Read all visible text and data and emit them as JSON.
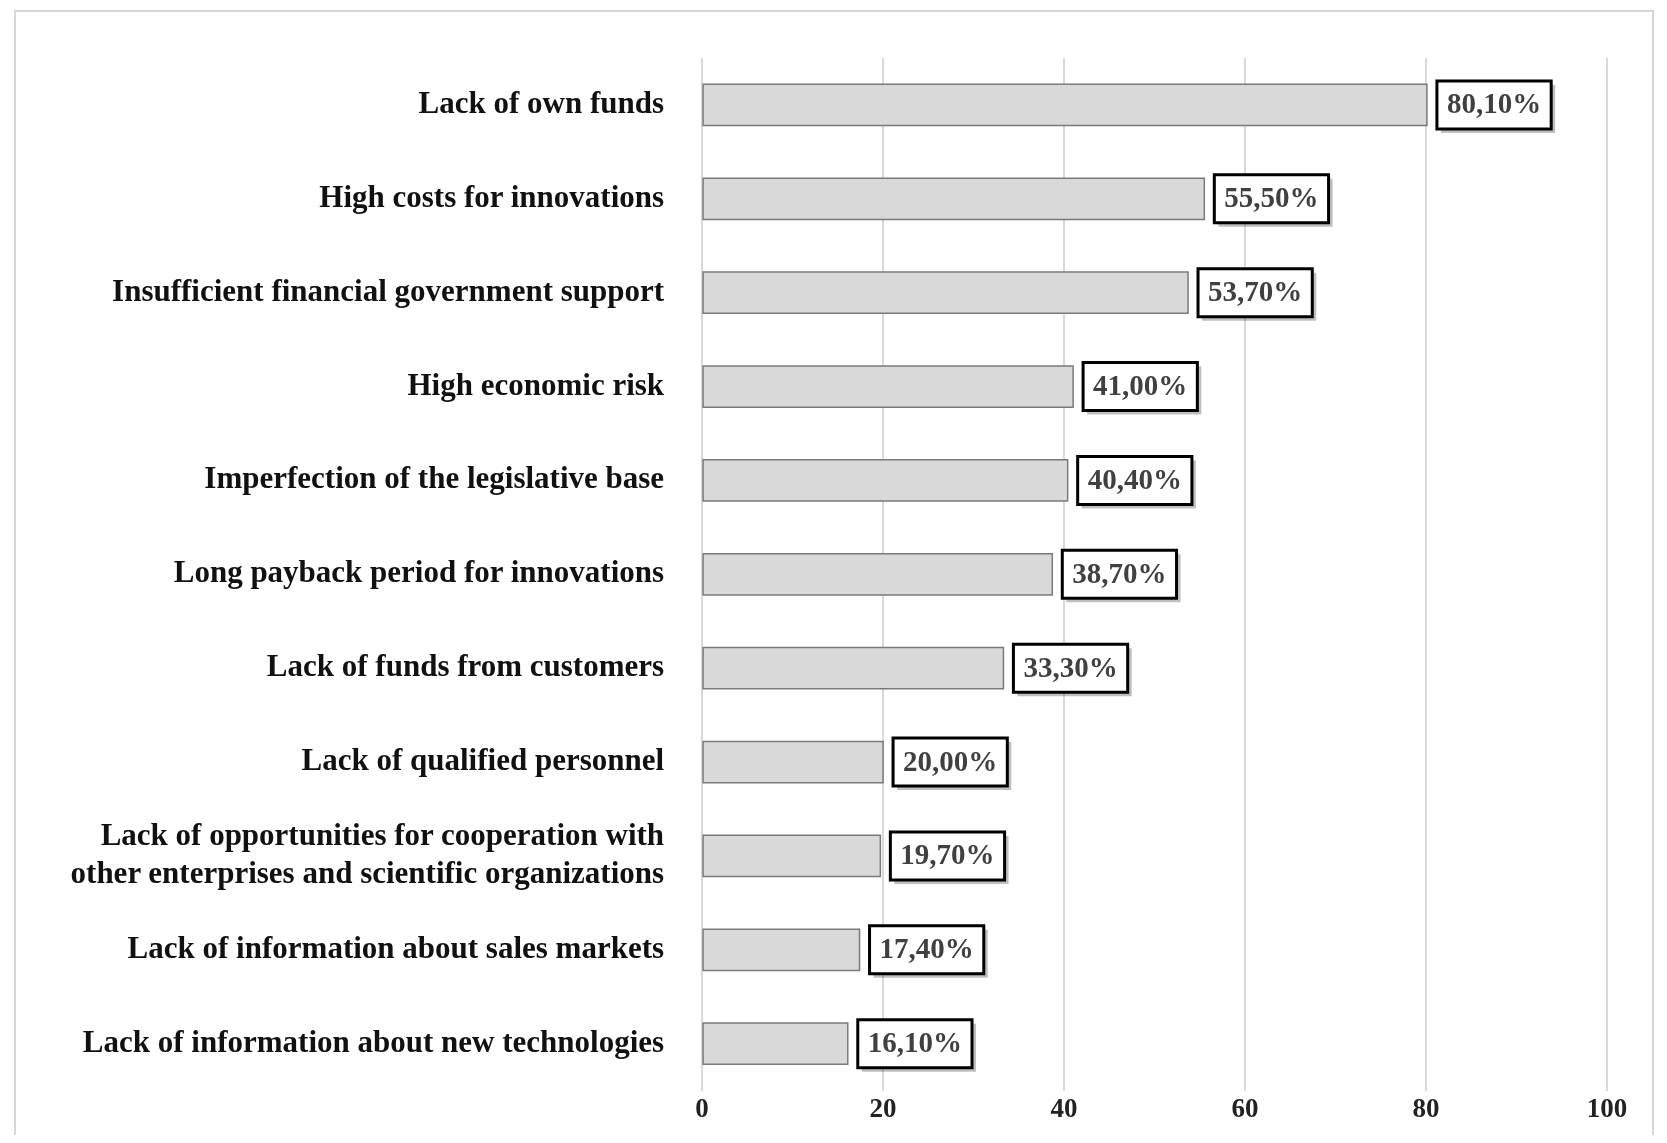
{
  "chart_data": {
    "type": "bar",
    "orientation": "horizontal",
    "categories": [
      "Lack of own funds",
      "High costs for innovations",
      "Insufficient financial government support",
      "High economic risk",
      "Imperfection of the legislative base",
      "Long payback period for innovations",
      "Lack of funds from customers",
      "Lack of qualified personnel",
      "Lack of opportunities for cooperation with other enterprises and scientific organizations",
      "Lack of information about sales markets",
      "Lack of information about new technologies"
    ],
    "values": [
      80.1,
      55.5,
      53.7,
      41.0,
      40.4,
      38.7,
      33.3,
      20.0,
      19.7,
      17.4,
      16.1
    ],
    "value_labels": [
      "80,10%",
      "55,50%",
      "53,70%",
      "41,00%",
      "40,40%",
      "38,70%",
      "33,30%",
      "20,00%",
      "19,70%",
      "17,40%",
      "16,10%"
    ],
    "color": "#d9d9d9",
    "xlim": [
      0,
      100
    ],
    "xticks": [
      0,
      20,
      40,
      60,
      80,
      100
    ],
    "grid": "x",
    "legend": false
  }
}
